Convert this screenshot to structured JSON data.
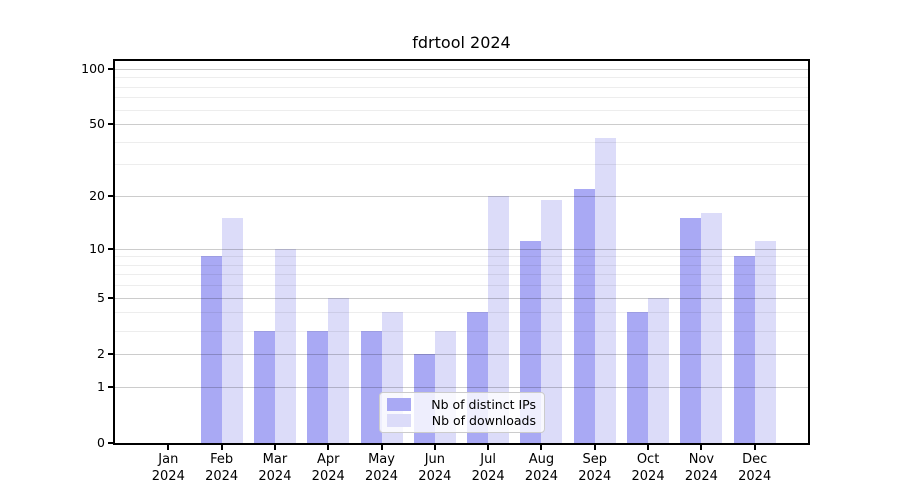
{
  "chart_data": {
    "type": "bar",
    "title": "fdrtool 2024",
    "categories": [
      "Jan",
      "Feb",
      "Mar",
      "Apr",
      "May",
      "Jun",
      "Jul",
      "Aug",
      "Sep",
      "Oct",
      "Nov",
      "Dec"
    ],
    "x_sub_label": "2024",
    "series": [
      {
        "name": "Nb of distinct IPs",
        "key": "distinct-ips",
        "color": "#a9a9f4",
        "values": [
          0,
          9,
          3,
          3,
          3,
          2,
          4,
          11,
          22,
          4,
          15,
          9
        ]
      },
      {
        "name": "Nb of downloads",
        "key": "downloads",
        "color": "#dcdcf9",
        "values": [
          0,
          15,
          10,
          5,
          4,
          3,
          20,
          19,
          42,
          5,
          16,
          11
        ]
      }
    ],
    "yscale": "log1p",
    "ylim": [
      0,
      110
    ],
    "y_major_ticks": [
      0,
      1,
      2,
      5,
      10,
      20,
      50,
      100
    ],
    "y_minor_ticks": [
      3,
      4,
      6,
      7,
      8,
      9,
      30,
      40,
      60,
      70,
      80,
      90
    ],
    "grid": "horizontal",
    "legend_position": "lower-center"
  },
  "colors": {
    "background": "#ffffff",
    "spine": "#000000",
    "major_grid": "rgba(0,0,0,0.20)",
    "minor_grid": "rgba(0,0,0,0.07)"
  }
}
